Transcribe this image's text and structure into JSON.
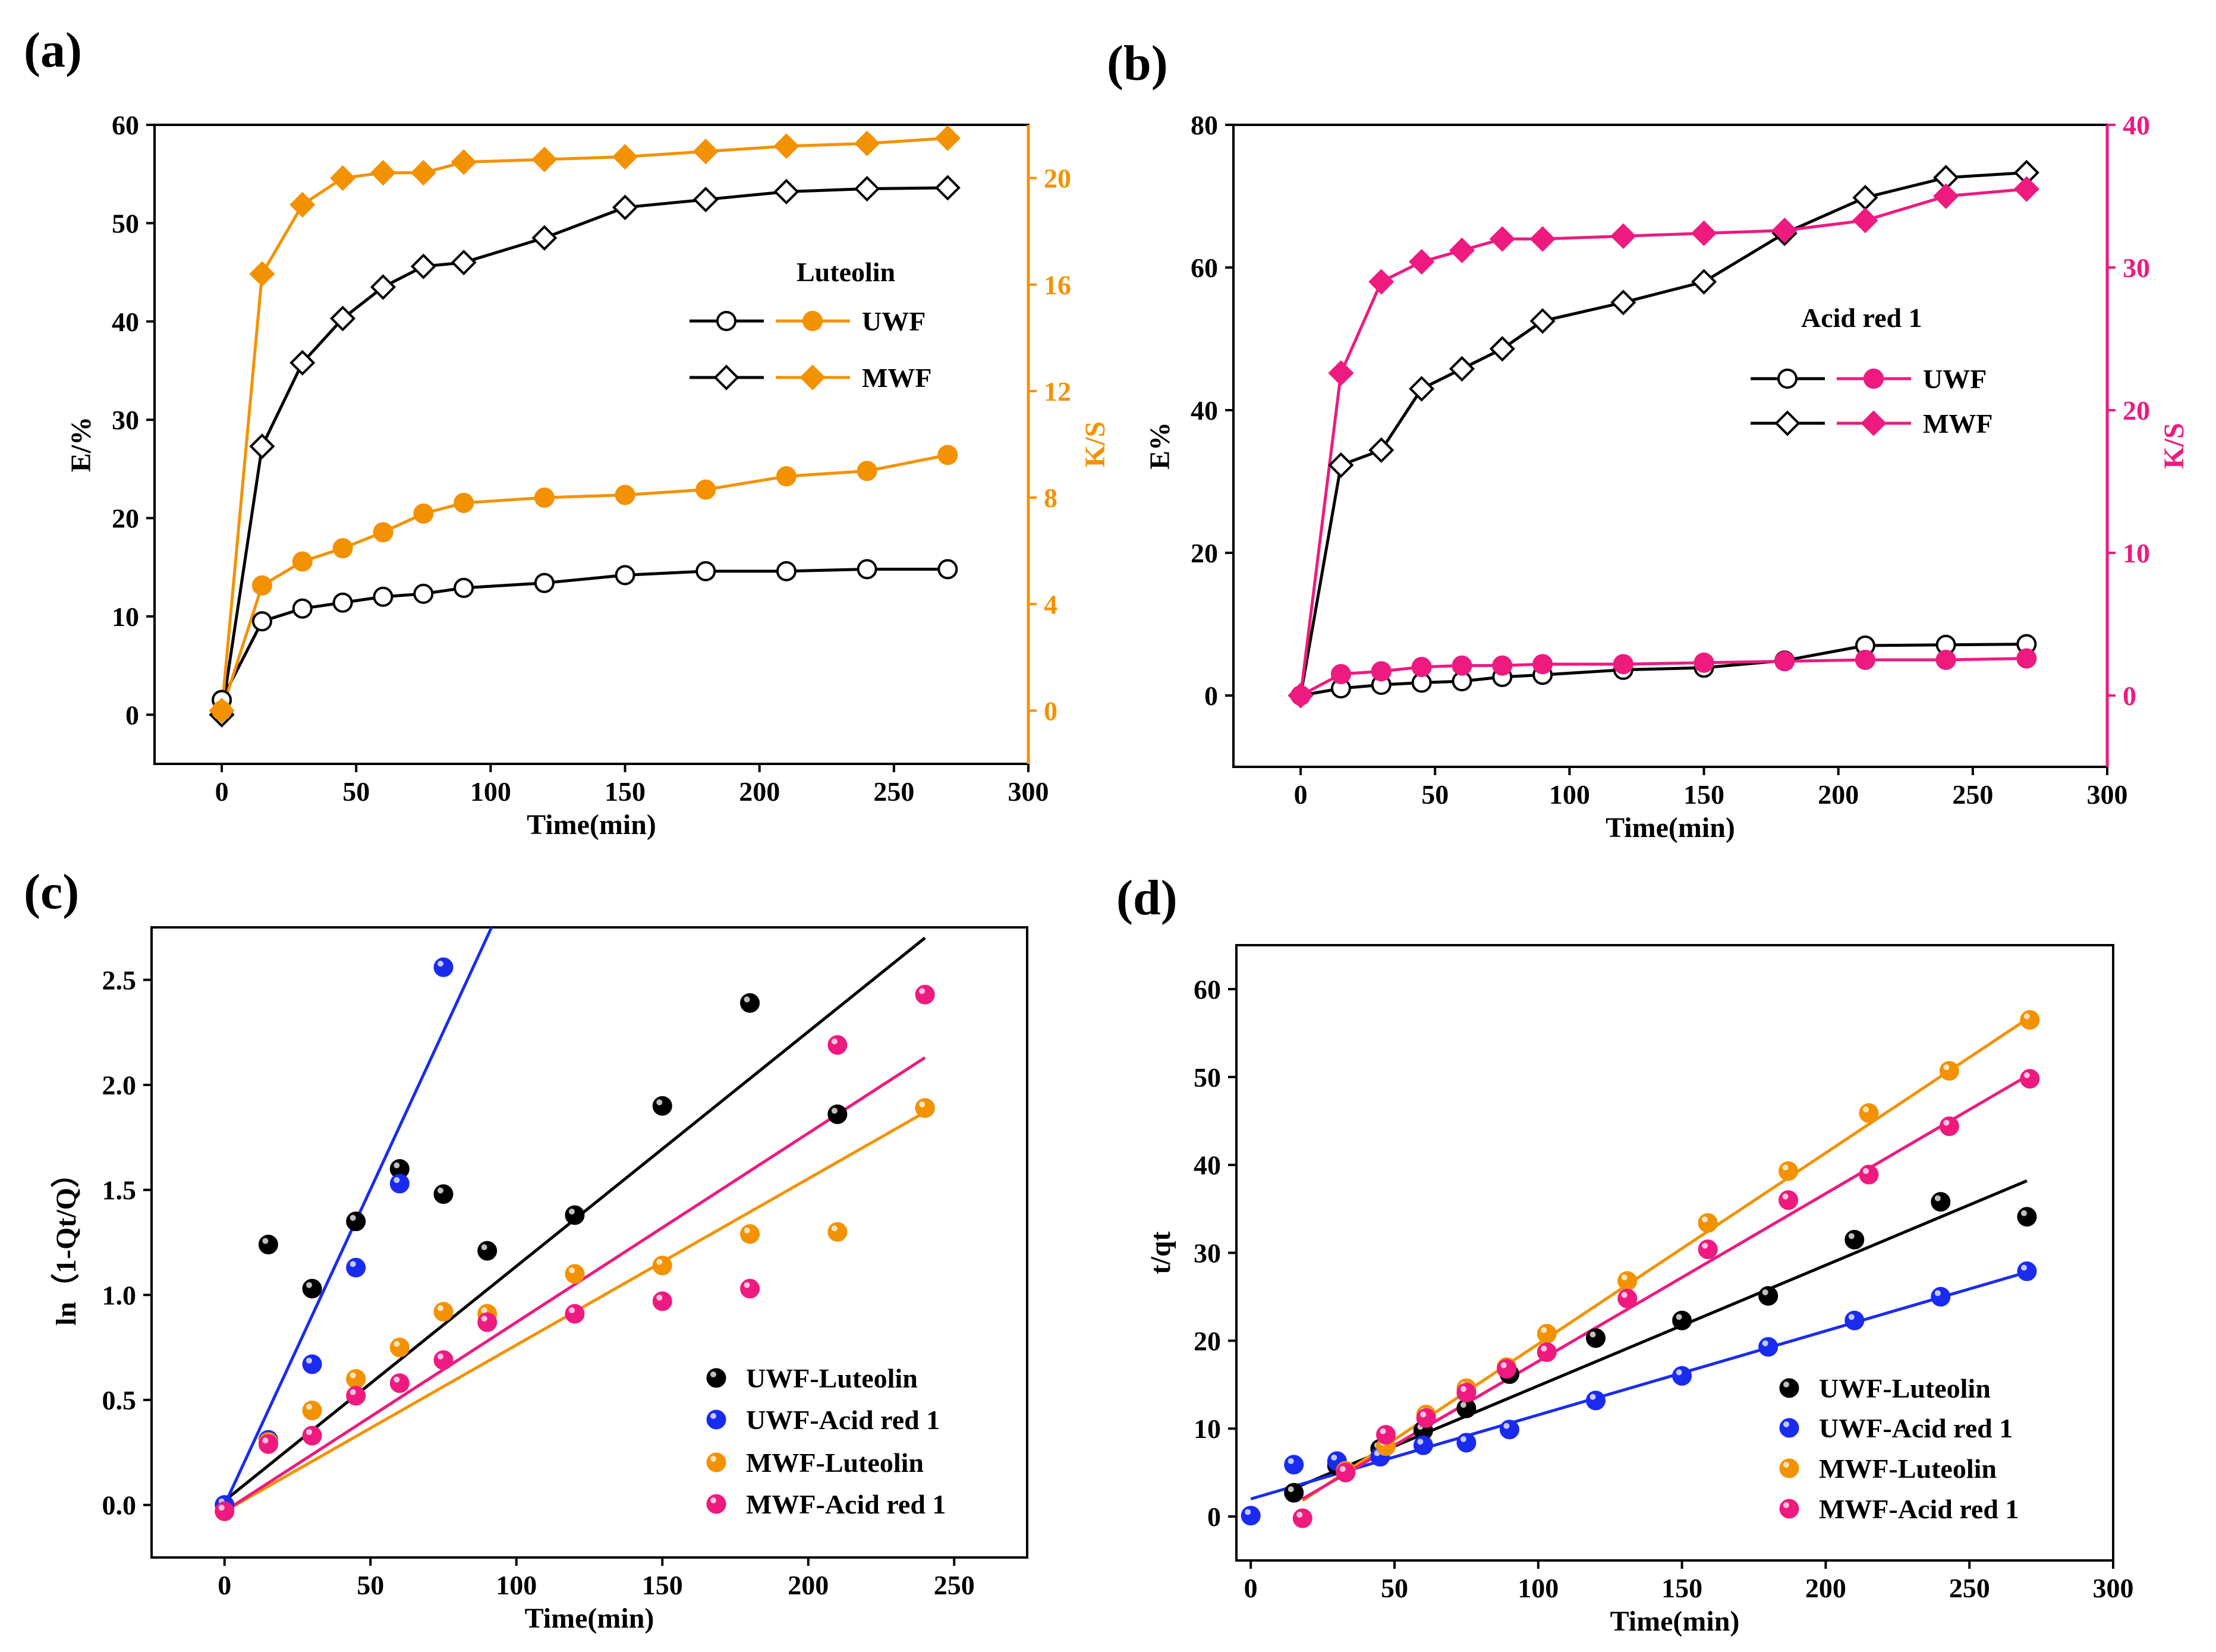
{
  "chart_data": [
    {
      "id": "a",
      "panel_label": "(a)",
      "type": "line",
      "xlabel": "Time(min)",
      "ylabel": "E/%",
      "y2label": "K/S",
      "xlim": [
        -25,
        300
      ],
      "ylim": [
        -5,
        60
      ],
      "y2lim": [
        -2,
        22
      ],
      "xticks": [
        0,
        50,
        100,
        150,
        200,
        250,
        300
      ],
      "yticks": [
        0,
        10,
        20,
        30,
        40,
        50,
        60
      ],
      "y2ticks": [
        0,
        4,
        8,
        12,
        16,
        20
      ],
      "legend_title": "Luteolin",
      "legend_position": "center-right",
      "legend": [
        {
          "label": "UWF",
          "marker": "circle"
        },
        {
          "label": "MWF",
          "marker": "diamond"
        }
      ],
      "colors": {
        "left": "#000000",
        "right": "#f39200"
      },
      "x": [
        0,
        15,
        30,
        45,
        60,
        75,
        90,
        120,
        150,
        180,
        210,
        240,
        270
      ],
      "series": [
        {
          "name": "UWF E/%",
          "axis": "left",
          "marker": "circle",
          "filled": false,
          "color": "#000000",
          "values": [
            1.5,
            9.5,
            10.8,
            11.4,
            12.0,
            12.3,
            12.9,
            13.4,
            14.2,
            14.6,
            14.6,
            14.8,
            14.8
          ]
        },
        {
          "name": "MWF E/%",
          "axis": "left",
          "marker": "diamond",
          "filled": false,
          "color": "#000000",
          "values": [
            0,
            27.3,
            35.8,
            40.3,
            43.5,
            45.6,
            46.0,
            48.5,
            51.6,
            52.4,
            53.2,
            53.5,
            53.6
          ]
        },
        {
          "name": "UWF K/S",
          "axis": "right",
          "marker": "circle",
          "filled": true,
          "color": "#f39200",
          "values": [
            0,
            4.7,
            5.6,
            6.1,
            6.7,
            7.4,
            7.8,
            8.0,
            8.1,
            8.3,
            8.8,
            9.0,
            9.6
          ]
        },
        {
          "name": "MWF K/S",
          "axis": "right",
          "marker": "diamond",
          "filled": true,
          "color": "#f39200",
          "values": [
            0,
            16.4,
            19.0,
            20.0,
            20.2,
            20.2,
            20.6,
            20.7,
            20.8,
            21.0,
            21.2,
            21.3,
            21.5
          ]
        }
      ]
    },
    {
      "id": "b",
      "panel_label": "(b)",
      "type": "line",
      "xlabel": "Time(min)",
      "ylabel": "E%",
      "y2label": "K/S",
      "xlim": [
        -25,
        300
      ],
      "ylim": [
        -10,
        80
      ],
      "y2lim": [
        -5,
        40
      ],
      "xticks": [
        0,
        50,
        100,
        150,
        200,
        250,
        300
      ],
      "yticks": [
        0,
        20,
        40,
        60,
        80
      ],
      "y2ticks": [
        0,
        10,
        20,
        30,
        40
      ],
      "legend_title": "Acid red 1",
      "legend_position": "center-right",
      "legend": [
        {
          "label": "UWF",
          "marker": "circle"
        },
        {
          "label": "MWF",
          "marker": "diamond"
        }
      ],
      "colors": {
        "left": "#000000",
        "right": "#ee1a7f"
      },
      "x": [
        0,
        15,
        30,
        45,
        60,
        75,
        90,
        120,
        150,
        180,
        210,
        240,
        270
      ],
      "series": [
        {
          "name": "UWF E%",
          "axis": "left",
          "marker": "circle",
          "filled": false,
          "color": "#000000",
          "values": [
            0,
            1.0,
            1.5,
            1.8,
            2.0,
            2.6,
            2.9,
            3.6,
            3.9,
            4.9,
            7.0,
            7.1,
            7.2
          ]
        },
        {
          "name": "MWF E%",
          "axis": "left",
          "marker": "diamond",
          "filled": false,
          "color": "#000000",
          "values": [
            0,
            32.3,
            34.4,
            43.0,
            45.8,
            48.6,
            52.5,
            55.1,
            58.0,
            64.8,
            69.8,
            72.6,
            73.3
          ]
        },
        {
          "name": "UWF K/S",
          "axis": "right",
          "marker": "circle",
          "filled": true,
          "color": "#ee1a7f",
          "values": [
            0,
            1.5,
            1.7,
            2.0,
            2.1,
            2.1,
            2.2,
            2.2,
            2.3,
            2.4,
            2.5,
            2.5,
            2.6
          ]
        },
        {
          "name": "MWF K/S",
          "axis": "right",
          "marker": "diamond",
          "filled": true,
          "color": "#ee1a7f",
          "values": [
            0,
            22.6,
            29.0,
            30.4,
            31.2,
            32.0,
            32.0,
            32.2,
            32.4,
            32.6,
            33.3,
            35.0,
            35.5
          ]
        }
      ]
    },
    {
      "id": "c",
      "panel_label": "(c)",
      "type": "scatter",
      "xlabel": "Time(min)",
      "ylabel": "ln（1-Qt/Q）",
      "xlim": [
        -25,
        275
      ],
      "ylim": [
        -0.25,
        2.75
      ],
      "xticks": [
        0,
        50,
        100,
        150,
        200,
        250
      ],
      "yticks": [
        "0.0",
        "0.5",
        "1.0",
        "1.5",
        "2.0",
        "2.5"
      ],
      "legend_position": "bottom-right",
      "series": [
        {
          "name": "UWF-Luteolin",
          "color": "#000000",
          "x": [
            15,
            30,
            45,
            60,
            75,
            90,
            120,
            150,
            180,
            210,
            240
          ],
          "values": [
            1.24,
            1.03,
            1.35,
            1.6,
            1.48,
            1.21,
            1.38,
            1.9,
            2.39,
            1.86,
            1.89
          ],
          "fit": {
            "x": [
              0,
              240
            ],
            "y": [
              0.02,
              2.7
            ]
          }
        },
        {
          "name": "UWF-Acid red 1",
          "color": "#1a2bf0",
          "x": [
            0,
            15,
            30,
            45,
            60,
            75
          ],
          "values": [
            0.0,
            0.31,
            0.67,
            1.13,
            1.53,
            2.56
          ],
          "fit": {
            "x": [
              0,
              91.5
            ],
            "y": [
              0.0,
              2.75
            ]
          }
        },
        {
          "name": "MWF-Luteolin",
          "color": "#f39200",
          "x": [
            0,
            15,
            30,
            45,
            60,
            75,
            90,
            120,
            150,
            180,
            210,
            240
          ],
          "values": [
            -0.03,
            0.3,
            0.45,
            0.6,
            0.75,
            0.92,
            0.91,
            1.1,
            1.14,
            1.29,
            1.3,
            1.89
          ],
          "fit": {
            "x": [
              0,
              240
            ],
            "y": [
              -0.03,
              1.87
            ]
          }
        },
        {
          "name": "MWF-Acid red 1",
          "color": "#ee1a7f",
          "x": [
            0,
            15,
            30,
            45,
            60,
            75,
            90,
            120,
            150,
            180,
            210,
            240
          ],
          "values": [
            -0.03,
            0.29,
            0.33,
            0.52,
            0.58,
            0.69,
            0.87,
            0.91,
            0.97,
            1.03,
            2.19,
            2.43
          ],
          "fit": {
            "x": [
              0,
              240
            ],
            "y": [
              -0.03,
              2.13
            ]
          }
        }
      ]
    },
    {
      "id": "d",
      "panel_label": "(d)",
      "type": "scatter",
      "xlabel": "Time(min)",
      "ylabel": "t/qt",
      "xlim": [
        -5,
        300
      ],
      "ylim": [
        -5,
        65
      ],
      "xticks": [
        0,
        50,
        100,
        150,
        200,
        250,
        300
      ],
      "yticks": [
        0,
        10,
        20,
        30,
        40,
        50,
        60
      ],
      "legend_position": "bottom-right",
      "series": [
        {
          "name": "UWF-Luteolin",
          "color": "#000000",
          "x": [
            15,
            30,
            45,
            60,
            75,
            90,
            120,
            150,
            180,
            210,
            240,
            270
          ],
          "values": [
            2.7,
            5.8,
            7.7,
            9.8,
            12.3,
            16.2,
            20.3,
            22.3,
            25.1,
            31.5,
            35.8,
            34.1
          ],
          "fit": {
            "x": [
              15,
              270
            ],
            "y": [
              3.2,
              38.2
            ]
          }
        },
        {
          "name": "UWF-Acid red 1",
          "color": "#1a2bf0",
          "x": [
            0,
            15,
            30,
            45,
            60,
            75,
            90,
            120,
            150,
            180,
            210,
            240,
            270
          ],
          "values": [
            0.1,
            5.9,
            6.3,
            6.8,
            8.1,
            8.4,
            9.9,
            13.2,
            16.0,
            19.3,
            22.3,
            25.0,
            27.9
          ],
          "fit": {
            "x": [
              0,
              270
            ],
            "y": [
              2.0,
              27.8
            ]
          }
        },
        {
          "name": "MWF-Luteolin",
          "color": "#f39200",
          "x": [
            33,
            47,
            61,
            75,
            89,
            103,
            131,
            159,
            187,
            215,
            243,
            271
          ],
          "values": [
            5.2,
            8.0,
            11.6,
            14.6,
            17.0,
            20.8,
            26.8,
            33.4,
            39.3,
            45.9,
            50.7,
            56.5
          ],
          "fit": {
            "x": [
              18,
              271
            ],
            "y": [
              1.8,
              56.8
            ]
          }
        },
        {
          "name": "MWF-Acid red 1",
          "color": "#ee1a7f",
          "x": [
            18,
            33,
            47,
            61,
            75,
            89,
            103,
            131,
            159,
            187,
            215,
            243,
            271
          ],
          "values": [
            -0.2,
            5.0,
            9.3,
            11.2,
            14.1,
            16.8,
            18.7,
            24.8,
            30.4,
            36.0,
            38.9,
            44.4,
            49.8
          ],
          "fit": {
            "x": [
              18,
              271
            ],
            "y": [
              2.0,
              50.3
            ]
          }
        }
      ]
    }
  ]
}
